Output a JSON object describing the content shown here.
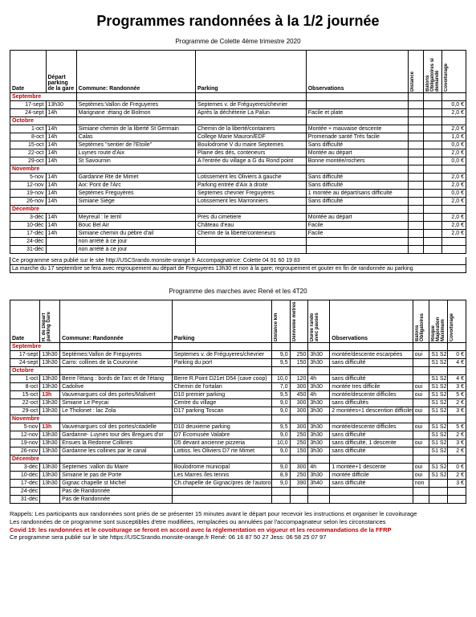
{
  "title": "Programmes randonnées à la 1/2 journée",
  "table1": {
    "subtitle": "Programme de Colette 4ème trimestre 2020",
    "headers": {
      "date": "Date",
      "depart": "Départ parking de la gare",
      "commune": "Commune: Randonnée",
      "parking": "Parking",
      "observations": "Observations",
      "distance": "Distance",
      "batons": "Batons Obligatoires si demandé",
      "covoit": "Covoiturage"
    },
    "months": [
      "Septembre",
      "Octobre",
      "Novembre",
      "Décembre"
    ],
    "rows": {
      "Septembre": [
        {
          "date": "17-sept",
          "dep": "13h30",
          "com": "Septèmes:Vallon de Freguyeres",
          "park": "Septemes v. de Fréguyeres/chevrier",
          "obs": "",
          "dist": "",
          "bat": "",
          "cov": "0,0 €"
        },
        {
          "date": "24-sept",
          "dep": "14h",
          "com": "Marignane :étang de Bolmon",
          "park": "Après la déchèterie La Palun",
          "obs": "Facile et plate",
          "dist": "",
          "bat": "",
          "cov": "2,0 €"
        }
      ],
      "Octobre": [
        {
          "date": "1-oct",
          "dep": "14h",
          "com": "Simiane chemin de la liberté St Germain",
          "park": "Chemin de la liberté/containers",
          "obs": "Montée + mauvaise descente",
          "dist": "",
          "bat": "",
          "cov": "2,0 €"
        },
        {
          "date": "8-oct",
          "dep": "14h",
          "com": "Calas",
          "park": "College Marie Mauron/EDF",
          "obs": "Promenade santé Très facile",
          "dist": "",
          "bat": "",
          "cov": "1,0 €"
        },
        {
          "date": "15-oct",
          "dep": "14h",
          "com": "Septèmes \"sentier de l'Etoile\"",
          "park": "Boulodrome V du maire Septemes",
          "obs": "Sans difficulté",
          "dist": "",
          "bat": "",
          "cov": "0,0 €"
        },
        {
          "date": "22-oct",
          "dep": "14h",
          "com": "Luynes route d'Aix",
          "park": "Plaine des dés, conteneurs",
          "obs": "Montée au départ",
          "dist": "",
          "bat": "",
          "cov": "2,0 €"
        },
        {
          "date": "29-oct",
          "dep": "14h",
          "com": "St Savournin",
          "park": "A l'entrée du village a G du Rond point",
          "obs": "Bonne montée/rochers",
          "dist": "",
          "bat": "",
          "cov": "0,0 €"
        }
      ],
      "Novembre": [
        {
          "date": "5-nov",
          "dep": "14h",
          "com": "Gardanne Rte de Mimet",
          "park": "Lotissement les Oliviers à gauche",
          "obs": "Sans difficulté",
          "dist": "",
          "bat": "",
          "cov": "2,0 €"
        },
        {
          "date": "12-nov",
          "dep": "14h",
          "com": "Aix: Pont de l'Arc",
          "park": "Parking entrée d'Aix à droite",
          "obs": "Sans difficulté",
          "dist": "",
          "bat": "",
          "cov": "2,0 €"
        },
        {
          "date": "19-nov",
          "dep": "14h",
          "com": "Septèmes Freguyères",
          "park": "Septemes chevrier Freguyères",
          "obs": "1 montée au départ/sans difficulté",
          "dist": "",
          "bat": "",
          "cov": "0,0 €"
        },
        {
          "date": "26-nov",
          "dep": "14h",
          "com": "Simiane Siège",
          "park": "Lotissement les Marronniers",
          "obs": "Sans difficulté",
          "dist": "",
          "bat": "",
          "cov": "2,0 €"
        }
      ],
      "Décembre": [
        {
          "date": "3-déc",
          "dep": "14h",
          "com": "Meyreuil : le terril",
          "park": "Pres du cimetiere",
          "obs": "Montée au départ",
          "dist": "",
          "bat": "",
          "cov": "2,0 €"
        },
        {
          "date": "10-déc",
          "dep": "14h",
          "com": "Bouc Bel Air",
          "park": "Château d'eau",
          "obs": "Facile",
          "dist": "",
          "bat": "",
          "cov": "2,0 €"
        },
        {
          "date": "17-déc",
          "dep": "14h",
          "com": "Simiane chemin du pèbre d'ail",
          "park": "Chemn de la liberté/conteneurs",
          "obs": "Facile",
          "dist": "",
          "bat": "",
          "cov": "2,0 €"
        },
        {
          "date": "24-déc",
          "dep": "",
          "com": "non arrété à ce jour",
          "park": "",
          "obs": "",
          "dist": "",
          "bat": "",
          "cov": ""
        },
        {
          "date": "31-déc",
          "dep": "",
          "com": "non arrété à ce jour",
          "park": "",
          "obs": "",
          "dist": "",
          "bat": "",
          "cov": ""
        }
      ]
    },
    "footer": [
      "Ce programme sera publié sur le site http://USCSrando.monsite-orange.fr   Accompagnatrice: Colette 04 91 60 19 83",
      "La  marche du 17 septembre se fera avec regroupement au départ de Freguyeres 13h30 et non à la gare; regroupement et gouter en fin de randonnée au parking"
    ]
  },
  "table2": {
    "subtitle": "Programme des marches avec René et les 4T20",
    "headers": {
      "date": "Date",
      "depart": "H. de Départ parking Gare",
      "commune": "Commune: Randonnée",
      "parking": "Parking",
      "distance": "Distance km",
      "denivele": "Dénivelée mètres",
      "duree": "Durée rando avec pauses",
      "observations": "Observations",
      "batons": "Batons Obligatoires",
      "risque": "Risque Majoration Maximum",
      "covoit": "Covoiturage"
    },
    "months": [
      "Septembre",
      "Octobre",
      "Novembre",
      "Décembre"
    ],
    "rows": {
      "Septembre": [
        {
          "date": "17-sept",
          "dep": "13h30",
          "com": "Septèmes:Vallon de Freguyeres",
          "park": "Septemes v. de Fréguyeres/chevrier",
          "dist": "9,0",
          "den": "250",
          "dur": "3h30",
          "obs": "montée/descente escarpées",
          "bat": "oui",
          "ris": "S1 S2",
          "cov": "0 €"
        },
        {
          "date": "24-sept",
          "dep": "13h30",
          "com": "Carro: collines de la Couronne",
          "park": "Parking du port",
          "dist": "9,5",
          "den": "150",
          "dur": "3h30",
          "obs": "sans difficulté",
          "bat": "",
          "ris": "S1 S2",
          "cov": "4 €"
        }
      ],
      "Octobre": [
        {
          "date": "1-oct",
          "dep": "13h30",
          "com": "Berre l'étang : bords de l'arc et de l'étang",
          "park": "Berre R.Point D21et D54 (cave coop)",
          "dist": "10,0",
          "den": "120",
          "dur": "4h",
          "obs": "sans difficulté",
          "bat": "",
          "ris": "S1 S2",
          "cov": "4 €"
        },
        {
          "date": "8-oct",
          "dep": "13h30",
          "com": "Cadolive",
          "park": "Chemin de l'ortalan",
          "dist": "7,0",
          "den": "300",
          "dur": "3h30",
          "obs": "montée tres difficile",
          "bat": "oui",
          "ris": "S1 S2",
          "cov": "3 €"
        },
        {
          "date": "15-oct",
          "dep": "13h",
          "depRed": true,
          "com": "Vauvenargues col des portes/Malivert",
          "park": "D10 premier parking",
          "dist": "9,5",
          "den": "450",
          "dur": "4h",
          "obs": "montée/descente difficiles",
          "bat": "oui",
          "ris": "S1 S2",
          "cov": "5 €"
        },
        {
          "date": "22-oct",
          "dep": "13h30",
          "com": "Simiane Le Peycai",
          "park": "Centre du village",
          "dist": "9,0",
          "den": "300",
          "dur": "3h30",
          "obs": "sans difficultés",
          "bat": "",
          "ris": "S1 S2",
          "cov": "2 €"
        },
        {
          "date": "29-oct",
          "dep": "13h30",
          "com": "Le Tholonet : lac Zola",
          "park": "D17 parking Toscan",
          "dist": "9,0",
          "den": "300",
          "dur": "3h30",
          "obs": "2 montées+1 descention difficiles",
          "bat": "oui",
          "ris": "S1 S2",
          "cov": "3 €"
        }
      ],
      "Novembre": [
        {
          "date": "5-nov",
          "dep": "13h",
          "depRed": true,
          "com": "Vauvenargues col des portes/citadelle",
          "park": "D10 deuxieme parking",
          "dist": "9,5",
          "den": "300",
          "dur": "3h30",
          "obs": "montée/descente difficiles",
          "bat": "oui",
          "ris": "S1 S2",
          "cov": "5 €"
        },
        {
          "date": "12-nov",
          "dep": "13h30",
          "com": "Gardanne- Luynes tour des Bregues d'or",
          "park": "D7 Ecomusée Valabre",
          "dist": "9,0",
          "den": "250",
          "dur": "3h30",
          "obs": "sans difficulté",
          "bat": "",
          "ris": "S1 S2",
          "cov": "2 €"
        },
        {
          "date": "19-nov",
          "dep": "13h30",
          "com": "Ensues la Redonne Collines",
          "park": "D5 devant ancienne pizzeria",
          "dist": "10,0",
          "den": "250",
          "dur": "3h30",
          "obs": "sans difficulté, 1 descente",
          "bat": "oui",
          "ris": "S1 S2",
          "cov": "3 €"
        },
        {
          "date": "26-nov",
          "dep": "13h30",
          "com": "Gardanne les collines par le canal",
          "park": "Lottiss. les Oliviers D7 rte Mimet",
          "dist": "9,0",
          "den": "150",
          "dur": "3h30",
          "obs": "sans difficulté",
          "bat": "",
          "ris": "S1 S2",
          "cov": "2 €"
        }
      ],
      "Décembre": [
        {
          "date": "3-déc",
          "dep": "13h30",
          "com": "Septemes :vallon du Maire",
          "park": "Boulodrome municipal",
          "dist": "9,0",
          "den": "300",
          "dur": "4h",
          "obs": "1 montée+1 descente",
          "bat": "oui",
          "ris": "S1 S2",
          "cov": "0 €"
        },
        {
          "date": "10-déc",
          "dep": "13h30",
          "com": "Simiane le pas de Porte",
          "park": "Les Marres /les tennis",
          "dist": "8,9",
          "den": "250",
          "dur": "3h30",
          "obs": "montée difficile",
          "bat": "oui",
          "ris": "S1 S2",
          "cov": "2 €"
        },
        {
          "date": "17-déc",
          "dep": "13h30",
          "com": "Gignac chapelle st Michel",
          "park": "Ch.chapelle de Gignac/pres de l'autoroute",
          "dist": "9,0",
          "den": "390",
          "dur": "3h40",
          "obs": "sans difficulté",
          "bat": "non",
          "ris": "",
          "cov": "3 €"
        },
        {
          "date": "24-déc",
          "dep": "",
          "com": "Pas de Randonnée",
          "park": "",
          "dist": "",
          "den": "",
          "dur": "",
          "obs": "",
          "bat": "",
          "ris": "",
          "cov": ""
        },
        {
          "date": "31-déc",
          "dep": "",
          "com": "Pas de Randonnée",
          "park": "",
          "dist": "",
          "den": "",
          "dur": "",
          "obs": "",
          "bat": "",
          "ris": "",
          "cov": ""
        }
      ]
    },
    "notes": [
      "Rappels: Les participants aux randonnées sont priés de se présenter 15 minutes avant le  départ pour recevoir les instructions et organiser le covoiturage",
      "Les randonnées de ce programme sont susceptibles d'etre modifiées, remplacées ou annulées par l'accompagnateur selon les circonstances"
    ],
    "covidNote": "Covid 19: les randonnées et le covoiturage se feront en accord avec la réglementation en vigueur et les recommandations de la FFRP",
    "footer": "Ce programme sera publié sur le site https://USCSrando.monsite-orange.fr                       René: 06 16 87 50 27   Jess: 06 58 25 07 97"
  }
}
